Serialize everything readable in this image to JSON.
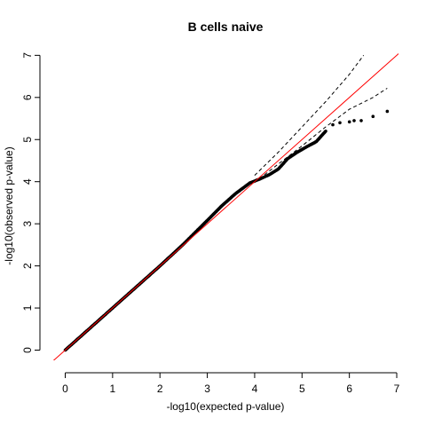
{
  "chart_data": {
    "type": "scatter",
    "title": "B cells naive",
    "xlabel": "-log10(expected p-value)",
    "ylabel": "-log10(observed p-value)",
    "xlim": [
      0,
      7
    ],
    "ylim": [
      0,
      7
    ],
    "xticks": [
      "0",
      "1",
      "2",
      "3",
      "4",
      "5",
      "6",
      "7"
    ],
    "yticks": [
      "0",
      "1",
      "2",
      "3",
      "4",
      "5",
      "6",
      "7"
    ],
    "grid": false,
    "legend": "none",
    "reference_line": {
      "slope": 1,
      "intercept": 0,
      "color": "#ff0000"
    },
    "point_color": "#000000",
    "series": [
      {
        "values_xy": [
          [
            0.0,
            0.0
          ],
          [
            0.2,
            0.2
          ],
          [
            0.5,
            0.5
          ],
          [
            1.0,
            1.0
          ],
          [
            1.5,
            1.5
          ],
          [
            2.0,
            2.0
          ],
          [
            2.5,
            2.52
          ],
          [
            3.0,
            3.08
          ],
          [
            3.3,
            3.42
          ],
          [
            3.6,
            3.72
          ],
          [
            3.9,
            3.97
          ],
          [
            4.1,
            4.06
          ],
          [
            4.3,
            4.16
          ],
          [
            4.5,
            4.3
          ],
          [
            4.7,
            4.55
          ],
          [
            4.9,
            4.7
          ],
          [
            5.1,
            4.83
          ],
          [
            5.3,
            4.95
          ],
          [
            5.5,
            5.2
          ],
          [
            5.65,
            5.35
          ],
          [
            5.8,
            5.4
          ],
          [
            6.0,
            5.42
          ],
          [
            6.1,
            5.45
          ],
          [
            6.25,
            5.45
          ],
          [
            6.5,
            5.55
          ],
          [
            6.8,
            5.67
          ]
        ]
      }
    ],
    "confidence_band": {
      "upper": [
        [
          4.0,
          4.15
        ],
        [
          4.5,
          4.7
        ],
        [
          5.0,
          5.3
        ],
        [
          5.5,
          5.9
        ],
        [
          6.0,
          6.55
        ],
        [
          6.3,
          7.0
        ]
      ],
      "lower": [
        [
          4.0,
          3.98
        ],
        [
          4.5,
          4.42
        ],
        [
          5.0,
          4.85
        ],
        [
          5.5,
          5.3
        ],
        [
          6.0,
          5.72
        ],
        [
          6.5,
          6.0
        ],
        [
          6.8,
          6.22
        ]
      ]
    }
  }
}
